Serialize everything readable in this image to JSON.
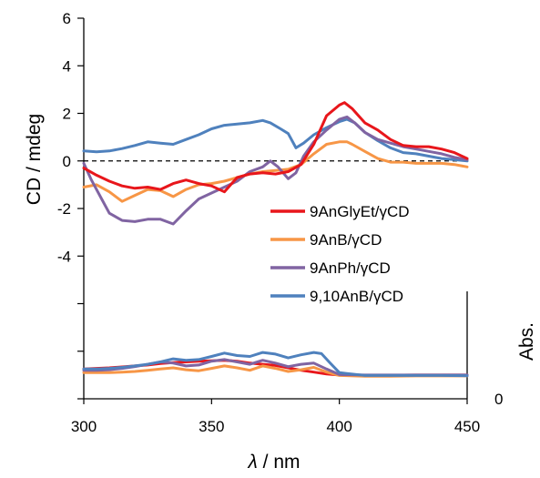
{
  "chart_data": {
    "type": "line",
    "xlabel": "λ / nm",
    "ylabel": "CD / mdeg",
    "y2label": "Abs.",
    "xlim": [
      300,
      450
    ],
    "ylim": [
      -10,
      6
    ],
    "x_ticks": [
      "300",
      "350",
      "400",
      "450"
    ],
    "y_ticks": [
      "6",
      "4",
      "2",
      "0",
      "-2",
      "-4"
    ],
    "y2_ticks": [
      "0"
    ],
    "grid": false,
    "legend": "center-right",
    "colors": {
      "9AnGlyEt/γCD": "#e8161b",
      "9AnB/γCD": "#f79646",
      "9AnPh/γCD": "#8064a2",
      "9,10AnB/γCD": "#4f81bd"
    },
    "legend_order": [
      "9AnGlyEt/γCD",
      "9AnB/γCD",
      "9AnPh/γCD",
      "9,10AnB/γCD"
    ],
    "cd_series": [
      {
        "name": "9AnGlyEt/γCD",
        "x": [
          300,
          305,
          310,
          315,
          320,
          325,
          330,
          335,
          340,
          345,
          350,
          355,
          360,
          365,
          370,
          375,
          380,
          385,
          390,
          395,
          400,
          402,
          405,
          410,
          415,
          420,
          425,
          430,
          435,
          440,
          445,
          450
        ],
        "y": [
          -0.3,
          -0.6,
          -0.85,
          -1.05,
          -1.15,
          -1.1,
          -1.2,
          -0.95,
          -0.8,
          -0.95,
          -1.05,
          -1.3,
          -0.7,
          -0.55,
          -0.5,
          -0.55,
          -0.45,
          -0.15,
          0.7,
          1.9,
          2.35,
          2.45,
          2.2,
          1.6,
          1.3,
          0.9,
          0.65,
          0.6,
          0.6,
          0.5,
          0.35,
          0.1
        ]
      },
      {
        "name": "9AnB/γCD",
        "x": [
          300,
          305,
          310,
          315,
          320,
          325,
          330,
          335,
          340,
          345,
          350,
          355,
          360,
          365,
          370,
          375,
          380,
          385,
          390,
          395,
          400,
          403,
          405,
          410,
          415,
          420,
          425,
          430,
          435,
          440,
          445,
          450
        ],
        "y": [
          -1.1,
          -1.0,
          -1.3,
          -1.7,
          -1.45,
          -1.2,
          -1.25,
          -1.5,
          -1.2,
          -1.0,
          -0.95,
          -0.85,
          -0.7,
          -0.55,
          -0.45,
          -0.4,
          -0.35,
          -0.15,
          0.3,
          0.7,
          0.8,
          0.8,
          0.7,
          0.4,
          0.1,
          -0.05,
          -0.05,
          -0.1,
          -0.1,
          -0.1,
          -0.15,
          -0.25
        ]
      },
      {
        "name": "9AnPh/γCD",
        "x": [
          300,
          303,
          307,
          310,
          315,
          320,
          325,
          330,
          335,
          340,
          345,
          350,
          355,
          360,
          365,
          370,
          373,
          376,
          380,
          383,
          386,
          390,
          395,
          400,
          403,
          406,
          410,
          415,
          420,
          425,
          430,
          435,
          440,
          445,
          450
        ],
        "y": [
          -0.1,
          -0.8,
          -1.6,
          -2.2,
          -2.5,
          -2.55,
          -2.45,
          -2.45,
          -2.65,
          -2.1,
          -1.6,
          -1.35,
          -1.1,
          -0.85,
          -0.45,
          -0.25,
          0.0,
          -0.25,
          -0.75,
          -0.5,
          0.2,
          0.8,
          1.3,
          1.75,
          1.85,
          1.6,
          1.2,
          0.9,
          0.75,
          0.6,
          0.5,
          0.4,
          0.3,
          0.15,
          0.05
        ]
      },
      {
        "name": "9,10AnB/γCD",
        "x": [
          300,
          305,
          310,
          315,
          320,
          325,
          330,
          335,
          340,
          345,
          350,
          355,
          360,
          365,
          370,
          373,
          377,
          380,
          383,
          386,
          390,
          395,
          400,
          403,
          406,
          410,
          415,
          420,
          425,
          430,
          435,
          440,
          445,
          450
        ],
        "y": [
          0.42,
          0.38,
          0.42,
          0.52,
          0.65,
          0.8,
          0.75,
          0.7,
          0.9,
          1.1,
          1.35,
          1.5,
          1.55,
          1.6,
          1.7,
          1.6,
          1.35,
          1.15,
          0.55,
          0.75,
          1.1,
          1.4,
          1.65,
          1.75,
          1.6,
          1.2,
          0.85,
          0.55,
          0.35,
          0.3,
          0.2,
          0.1,
          0.05,
          0.0
        ]
      }
    ],
    "abs_series": [
      {
        "name": "9AnGlyEt/γCD",
        "x": [
          300,
          305,
          310,
          315,
          320,
          325,
          330,
          335,
          340,
          345,
          350,
          355,
          360,
          365,
          370,
          375,
          380,
          385,
          390,
          395,
          400,
          410,
          420,
          430,
          440,
          450
        ],
        "y": [
          -8.75,
          -8.72,
          -8.7,
          -8.66,
          -8.62,
          -8.58,
          -8.52,
          -8.48,
          -8.45,
          -8.42,
          -8.4,
          -8.38,
          -8.42,
          -8.5,
          -8.55,
          -8.6,
          -8.7,
          -8.8,
          -8.88,
          -8.96,
          -9.0,
          -9.01,
          -9.01,
          -9.0,
          -9.0,
          -9.0
        ]
      },
      {
        "name": "9AnB/γCD",
        "x": [
          300,
          305,
          310,
          315,
          320,
          325,
          330,
          335,
          340,
          345,
          350,
          355,
          360,
          365,
          370,
          375,
          380,
          385,
          390,
          395,
          400,
          410,
          420,
          430,
          440,
          450
        ],
        "y": [
          -8.9,
          -8.9,
          -8.9,
          -8.88,
          -8.85,
          -8.8,
          -8.75,
          -8.7,
          -8.78,
          -8.82,
          -8.72,
          -8.62,
          -8.7,
          -8.8,
          -8.62,
          -8.72,
          -8.85,
          -8.78,
          -8.68,
          -8.88,
          -9.02,
          -9.05,
          -9.05,
          -9.04,
          -9.04,
          -9.04
        ]
      },
      {
        "name": "9AnPh/γCD",
        "x": [
          300,
          305,
          310,
          315,
          320,
          325,
          330,
          335,
          340,
          345,
          350,
          355,
          360,
          365,
          370,
          375,
          380,
          385,
          390,
          395,
          400,
          410,
          420,
          430,
          440,
          450
        ],
        "y": [
          -8.8,
          -8.8,
          -8.78,
          -8.72,
          -8.65,
          -8.55,
          -8.45,
          -8.5,
          -8.62,
          -8.58,
          -8.42,
          -8.35,
          -8.45,
          -8.55,
          -8.38,
          -8.5,
          -8.65,
          -8.55,
          -8.5,
          -8.75,
          -8.98,
          -9.0,
          -9.0,
          -9.0,
          -9.0,
          -9.0
        ]
      },
      {
        "name": "9,10AnB/γCD",
        "x": [
          300,
          305,
          310,
          315,
          320,
          325,
          330,
          335,
          340,
          345,
          350,
          355,
          360,
          365,
          370,
          375,
          380,
          385,
          390,
          393,
          396,
          400,
          410,
          420,
          430,
          440,
          450
        ],
        "y": [
          -8.75,
          -8.75,
          -8.72,
          -8.68,
          -8.62,
          -8.55,
          -8.45,
          -8.32,
          -8.38,
          -8.35,
          -8.22,
          -8.08,
          -8.18,
          -8.22,
          -8.05,
          -8.12,
          -8.28,
          -8.15,
          -8.05,
          -8.1,
          -8.45,
          -8.9,
          -9.02,
          -9.02,
          -9.02,
          -9.02,
          -9.03
        ]
      }
    ]
  }
}
